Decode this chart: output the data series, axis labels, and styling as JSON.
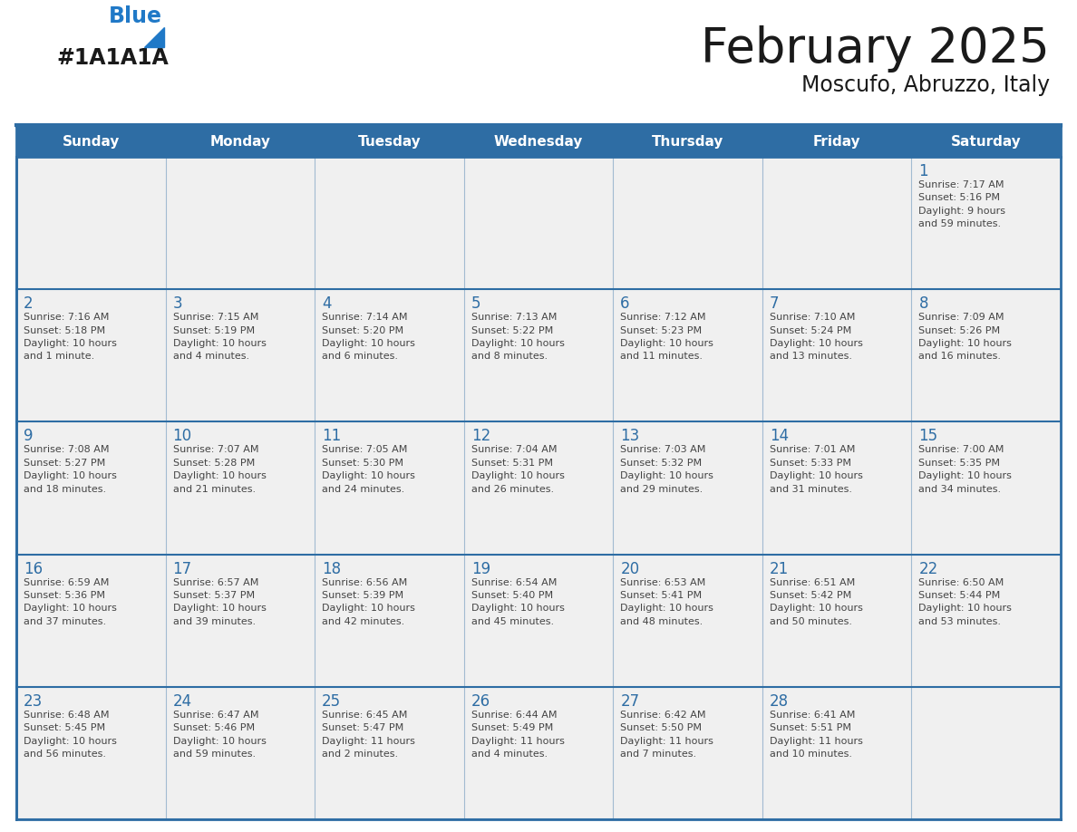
{
  "title": "February 2025",
  "subtitle": "Moscufo, Abruzzo, Italy",
  "header_bg_color": "#2E6DA4",
  "header_text_color": "#FFFFFF",
  "cell_bg_color": "#F0F0F0",
  "border_color": "#2E6DA4",
  "day_text_color": "#2E6DA4",
  "info_text_color": "#444444",
  "title_color": "#1A1A1A",
  "days_of_week": [
    "Sunday",
    "Monday",
    "Tuesday",
    "Wednesday",
    "Thursday",
    "Friday",
    "Saturday"
  ],
  "logo_black": "#1A1A1A",
  "logo_blue": "#2079C7",
  "weeks": [
    [
      {
        "day": "",
        "info": ""
      },
      {
        "day": "",
        "info": ""
      },
      {
        "day": "",
        "info": ""
      },
      {
        "day": "",
        "info": ""
      },
      {
        "day": "",
        "info": ""
      },
      {
        "day": "",
        "info": ""
      },
      {
        "day": "1",
        "info": "Sunrise: 7:17 AM\nSunset: 5:16 PM\nDaylight: 9 hours\nand 59 minutes."
      }
    ],
    [
      {
        "day": "2",
        "info": "Sunrise: 7:16 AM\nSunset: 5:18 PM\nDaylight: 10 hours\nand 1 minute."
      },
      {
        "day": "3",
        "info": "Sunrise: 7:15 AM\nSunset: 5:19 PM\nDaylight: 10 hours\nand 4 minutes."
      },
      {
        "day": "4",
        "info": "Sunrise: 7:14 AM\nSunset: 5:20 PM\nDaylight: 10 hours\nand 6 minutes."
      },
      {
        "day": "5",
        "info": "Sunrise: 7:13 AM\nSunset: 5:22 PM\nDaylight: 10 hours\nand 8 minutes."
      },
      {
        "day": "6",
        "info": "Sunrise: 7:12 AM\nSunset: 5:23 PM\nDaylight: 10 hours\nand 11 minutes."
      },
      {
        "day": "7",
        "info": "Sunrise: 7:10 AM\nSunset: 5:24 PM\nDaylight: 10 hours\nand 13 minutes."
      },
      {
        "day": "8",
        "info": "Sunrise: 7:09 AM\nSunset: 5:26 PM\nDaylight: 10 hours\nand 16 minutes."
      }
    ],
    [
      {
        "day": "9",
        "info": "Sunrise: 7:08 AM\nSunset: 5:27 PM\nDaylight: 10 hours\nand 18 minutes."
      },
      {
        "day": "10",
        "info": "Sunrise: 7:07 AM\nSunset: 5:28 PM\nDaylight: 10 hours\nand 21 minutes."
      },
      {
        "day": "11",
        "info": "Sunrise: 7:05 AM\nSunset: 5:30 PM\nDaylight: 10 hours\nand 24 minutes."
      },
      {
        "day": "12",
        "info": "Sunrise: 7:04 AM\nSunset: 5:31 PM\nDaylight: 10 hours\nand 26 minutes."
      },
      {
        "day": "13",
        "info": "Sunrise: 7:03 AM\nSunset: 5:32 PM\nDaylight: 10 hours\nand 29 minutes."
      },
      {
        "day": "14",
        "info": "Sunrise: 7:01 AM\nSunset: 5:33 PM\nDaylight: 10 hours\nand 31 minutes."
      },
      {
        "day": "15",
        "info": "Sunrise: 7:00 AM\nSunset: 5:35 PM\nDaylight: 10 hours\nand 34 minutes."
      }
    ],
    [
      {
        "day": "16",
        "info": "Sunrise: 6:59 AM\nSunset: 5:36 PM\nDaylight: 10 hours\nand 37 minutes."
      },
      {
        "day": "17",
        "info": "Sunrise: 6:57 AM\nSunset: 5:37 PM\nDaylight: 10 hours\nand 39 minutes."
      },
      {
        "day": "18",
        "info": "Sunrise: 6:56 AM\nSunset: 5:39 PM\nDaylight: 10 hours\nand 42 minutes."
      },
      {
        "day": "19",
        "info": "Sunrise: 6:54 AM\nSunset: 5:40 PM\nDaylight: 10 hours\nand 45 minutes."
      },
      {
        "day": "20",
        "info": "Sunrise: 6:53 AM\nSunset: 5:41 PM\nDaylight: 10 hours\nand 48 minutes."
      },
      {
        "day": "21",
        "info": "Sunrise: 6:51 AM\nSunset: 5:42 PM\nDaylight: 10 hours\nand 50 minutes."
      },
      {
        "day": "22",
        "info": "Sunrise: 6:50 AM\nSunset: 5:44 PM\nDaylight: 10 hours\nand 53 minutes."
      }
    ],
    [
      {
        "day": "23",
        "info": "Sunrise: 6:48 AM\nSunset: 5:45 PM\nDaylight: 10 hours\nand 56 minutes."
      },
      {
        "day": "24",
        "info": "Sunrise: 6:47 AM\nSunset: 5:46 PM\nDaylight: 10 hours\nand 59 minutes."
      },
      {
        "day": "25",
        "info": "Sunrise: 6:45 AM\nSunset: 5:47 PM\nDaylight: 11 hours\nand 2 minutes."
      },
      {
        "day": "26",
        "info": "Sunrise: 6:44 AM\nSunset: 5:49 PM\nDaylight: 11 hours\nand 4 minutes."
      },
      {
        "day": "27",
        "info": "Sunrise: 6:42 AM\nSunset: 5:50 PM\nDaylight: 11 hours\nand 7 minutes."
      },
      {
        "day": "28",
        "info": "Sunrise: 6:41 AM\nSunset: 5:51 PM\nDaylight: 11 hours\nand 10 minutes."
      },
      {
        "day": "",
        "info": ""
      }
    ]
  ]
}
